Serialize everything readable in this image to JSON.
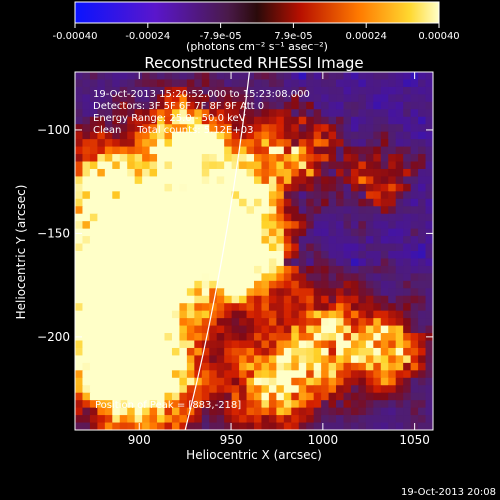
{
  "chart_data": {
    "type": "heatmap",
    "title": "Reconstructed RHESSI Image",
    "xlabel": "Heliocentric X (arcsec)",
    "ylabel": "Heliocentric Y (arcsec)",
    "xlim": [
      865,
      1060
    ],
    "ylim": [
      -245,
      -72
    ],
    "xticks": [
      900,
      950,
      1000,
      1050
    ],
    "yticks": [
      -100,
      -150,
      -200
    ],
    "colorbar": {
      "ticks": [
        "-0.00040",
        "-0.00024",
        "-7.9e-05",
        "7.9e-05",
        "0.00024",
        "0.00040"
      ],
      "units_label": "(photons cm⁻² s⁻¹ asec⁻²)",
      "range": [
        -0.0004,
        0.0004
      ]
    },
    "annotations": [
      "19-Oct-2013 15:20:52.000 to 15:23:08.000",
      "Detectors: 3F 5F 6F 7F 8F 9F Att 0",
      "Energy Range: 25.0 - 50.0 keV",
      "Clean     Total counts: 5.12E+03"
    ],
    "peak_label": "Position of Peak = [883,-218]",
    "peak_position": [
      883,
      -218
    ],
    "limb_arc": [
      [
        960,
        -72
      ],
      [
        951,
        -140
      ],
      [
        938,
        -200
      ],
      [
        925,
        -245
      ]
    ],
    "timestamp": "19-Oct-2013 20:08"
  }
}
